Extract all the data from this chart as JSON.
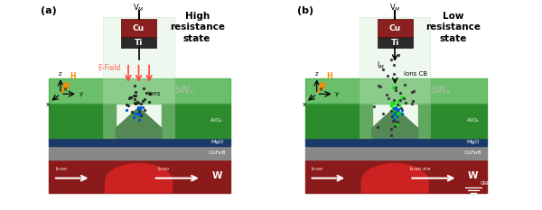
{
  "panel_a_title": "(a)",
  "panel_b_title": "(b)",
  "state_a": "High\nresistance\nstate",
  "state_b": "Low\nresistance\nstate",
  "current_label_a_left": "I$_{SHNO}$",
  "current_label_a_right": "I$_{SHNO}$",
  "current_label_b_left": "I$_{SHNO}$",
  "current_label_b_right": "I$_{SHNO}$+I$_M$",
  "voltage_label": "V$_M$",
  "efield_label": "E-Field",
  "ions_label_a": "Ions",
  "ions_label_b": "Ions CB",
  "im_label": "I$_M$",
  "sinx_label": "SiN$_x$",
  "gnd_label": "GND",
  "alox_label": "AlO$_x$",
  "mgo_label": "MgO",
  "cofeb_label": "CoFeB",
  "w_label": "W",
  "cu_label": "Cu",
  "ti_label": "Ti",
  "color_w_dark": "#8b1a1a",
  "color_w_bright": "#cc2222",
  "color_cofeb": "#888888",
  "color_mgo": "#1a3a6a",
  "color_green_dark": "#2d8a2d",
  "color_green_mid": "#3aaa3a",
  "color_green_light": "#88cc88",
  "color_sinx_glass": "#d0ead0",
  "color_cu": "#8b2020",
  "color_ti": "#2a2a2a",
  "color_efield": "#ff4444",
  "color_h": "#ff8800"
}
